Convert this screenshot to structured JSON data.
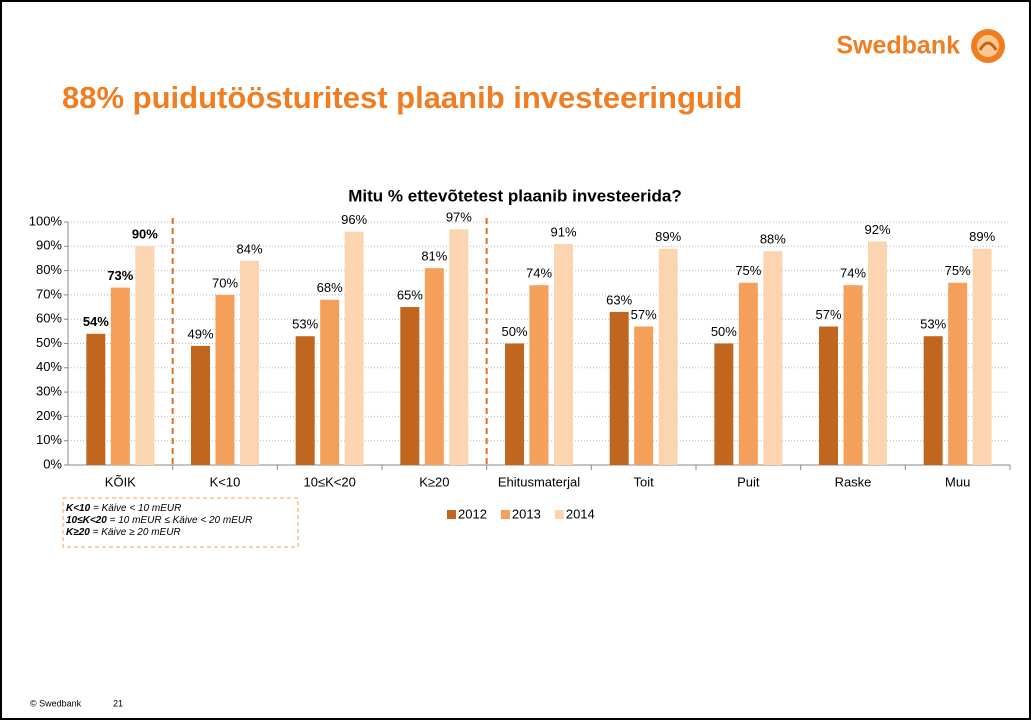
{
  "brand": "Swedbank",
  "slide_title": "88% puidutöösturitest plaanib investeeringuid",
  "footer": {
    "copyright": "© Swedbank",
    "page": "21"
  },
  "notes": [
    {
      "term": "K<10",
      "text": " = Käive < 10 mEUR"
    },
    {
      "term": "10≤K<20",
      "text": " = 10 mEUR ≤ Käive < 20 mEUR"
    },
    {
      "term": "K≥20",
      "text": " = Käive ≥ 20 mEUR"
    }
  ],
  "chart_data": {
    "type": "bar",
    "title": "Mitu % ettevõtetest plaanib investeerida?",
    "categories": [
      "KÕIK",
      "K<10",
      "10≤K<20",
      "K≥20",
      "Ehitusmaterjal",
      "Toit",
      "Puit",
      "Raske",
      "Muu"
    ],
    "dividers_after": [
      0,
      3
    ],
    "series": [
      {
        "name": "2012",
        "color": "#c0661e",
        "values": [
          54,
          49,
          53,
          65,
          50,
          63,
          50,
          57,
          53
        ],
        "value_labels": [
          "54%",
          "49%",
          "53%",
          "65%",
          "50%",
          "63%",
          "50%",
          "57%",
          "53%"
        ]
      },
      {
        "name": "2013",
        "color": "#f4a05a",
        "values": [
          73,
          70,
          68,
          81,
          74,
          57,
          75,
          74,
          75
        ],
        "value_labels": [
          "73%",
          "70%",
          "68%",
          "81%",
          "74%",
          "57%",
          "75%",
          "74%",
          "75%"
        ]
      },
      {
        "name": "2014",
        "color": "#fbd5b0",
        "values": [
          90,
          84,
          96,
          97,
          91,
          89,
          88,
          92,
          89
        ],
        "value_labels": [
          "90%",
          "84%",
          "96%",
          "97%",
          "91%",
          "89%",
          "88%",
          "92%",
          "89%"
        ]
      }
    ],
    "ylim": [
      0,
      100
    ],
    "yticks": [
      {
        "value": 0,
        "label": "0%"
      },
      {
        "value": 10,
        "label": "10%"
      },
      {
        "value": 20,
        "label": "20%"
      },
      {
        "value": 30,
        "label": "30%"
      },
      {
        "value": 40,
        "label": "40%"
      },
      {
        "value": 50,
        "label": "50%"
      },
      {
        "value": 60,
        "label": "60%"
      },
      {
        "value": 70,
        "label": "70%"
      },
      {
        "value": 80,
        "label": "80%"
      },
      {
        "value": 90,
        "label": "90%"
      },
      {
        "value": 100,
        "label": "100%"
      }
    ],
    "grid": true
  }
}
